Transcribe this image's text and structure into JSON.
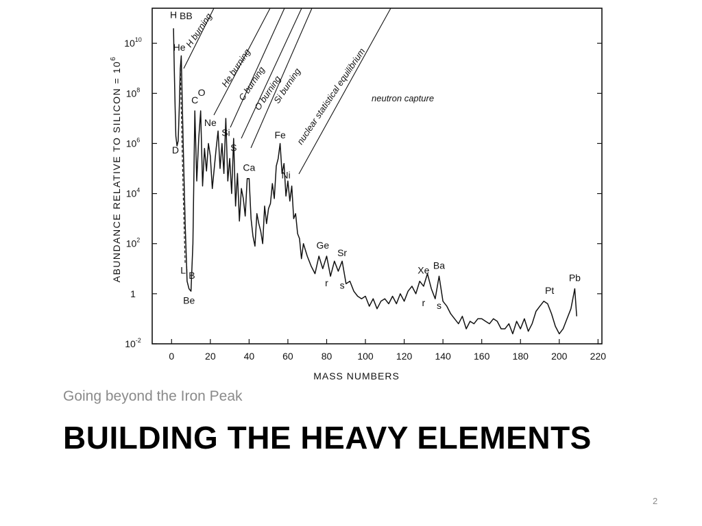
{
  "slide": {
    "subtitle": "Going beyond the Iron Peak",
    "title": "BUILDING THE HEAVY ELEMENTS",
    "page_number": "2"
  },
  "chart_data": {
    "type": "line",
    "xlabel": "MASS NUMBERS",
    "ylabel": "ABUNDANCE RELATIVE TO SILICON = 10",
    "ylabel_exponent": "6",
    "y_scale": "log",
    "xlim": [
      -10,
      222
    ],
    "ylim_log10": [
      -2,
      11.4
    ],
    "x_ticks": [
      0,
      20,
      40,
      60,
      80,
      100,
      120,
      140,
      160,
      180,
      200,
      220
    ],
    "y_ticks": [
      {
        "value": -2,
        "base": "10",
        "exp": "-2"
      },
      {
        "value": 0,
        "base": "1",
        "exp": ""
      },
      {
        "value": 2,
        "base": "10",
        "exp": "2"
      },
      {
        "value": 4,
        "base": "10",
        "exp": "4"
      },
      {
        "value": 6,
        "base": "10",
        "exp": "6"
      },
      {
        "value": 8,
        "base": "10",
        "exp": "8"
      },
      {
        "value": 10,
        "base": "10",
        "exp": "10"
      }
    ],
    "series": [
      {
        "x": [
          1,
          1.4,
          1.8,
          2.2,
          2.8,
          3.4,
          4,
          4.5,
          5,
          6,
          7,
          8,
          9,
          10,
          11,
          12,
          13,
          14,
          15,
          16,
          17,
          18,
          19,
          20,
          21,
          22,
          23,
          24,
          25,
          26,
          27,
          28,
          29,
          30,
          31,
          32,
          33,
          34,
          35,
          36,
          37,
          38,
          39,
          40,
          41,
          42,
          43,
          44,
          45,
          46,
          47,
          48,
          49,
          50,
          51,
          52,
          53,
          54,
          55,
          56,
          57,
          58,
          59,
          60,
          61,
          62,
          63,
          64,
          65,
          66,
          67,
          68,
          70,
          72,
          74,
          76,
          78,
          80,
          82,
          84,
          86,
          88,
          90,
          92,
          94,
          96,
          98,
          100,
          102,
          104,
          106,
          108,
          110,
          112,
          114,
          116,
          118,
          120,
          122,
          124,
          126,
          128,
          130,
          132,
          134,
          136,
          138,
          140,
          142,
          144,
          146,
          148,
          150,
          152,
          154,
          156,
          158,
          160,
          162,
          164,
          166,
          168,
          170,
          172,
          174,
          176,
          178,
          180,
          182,
          184,
          186,
          188,
          190,
          192,
          194,
          196,
          198,
          200,
          202,
          204,
          206,
          208,
          209
        ],
        "log10_y": [
          10.6,
          9.0,
          7.5,
          6.3,
          5.9,
          6.1,
          7.5,
          9.0,
          9.5,
          6.0,
          2.8,
          0.5,
          0.2,
          0.1,
          2.0,
          7.3,
          4.5,
          6.2,
          7.3,
          4.3,
          5.8,
          4.9,
          6.0,
          5.5,
          4.2,
          5.0,
          5.8,
          6.5,
          5.0,
          6.0,
          4.8,
          7.0,
          4.5,
          5.4,
          4.0,
          6.2,
          3.5,
          4.8,
          2.9,
          4.2,
          3.8,
          3.1,
          4.6,
          4.6,
          3.0,
          2.3,
          1.9,
          3.2,
          2.8,
          2.5,
          2.0,
          3.5,
          2.8,
          3.4,
          3.6,
          4.4,
          3.8,
          5.1,
          5.4,
          6.0,
          4.8,
          5.2,
          3.9,
          4.5,
          3.7,
          4.3,
          3.0,
          3.2,
          2.4,
          2.2,
          1.4,
          2.0,
          1.5,
          1.1,
          0.8,
          1.5,
          1.0,
          1.5,
          0.7,
          1.3,
          0.9,
          1.3,
          0.4,
          0.5,
          0.1,
          -0.1,
          -0.2,
          -0.1,
          -0.5,
          -0.2,
          -0.6,
          -0.3,
          -0.2,
          -0.4,
          -0.1,
          -0.4,
          0.0,
          -0.3,
          0.1,
          0.3,
          0.0,
          0.5,
          0.3,
          0.8,
          0.2,
          -0.2,
          0.7,
          -0.3,
          -0.5,
          -0.8,
          -1.0,
          -1.2,
          -0.9,
          -1.4,
          -1.1,
          -1.2,
          -1.0,
          -1.0,
          -1.1,
          -1.2,
          -1.0,
          -1.1,
          -1.4,
          -1.4,
          -1.2,
          -1.6,
          -1.1,
          -1.4,
          -1.0,
          -1.5,
          -1.2,
          -0.7,
          -0.5,
          -0.3,
          -0.4,
          -0.8,
          -1.3,
          -1.6,
          -1.4,
          -1.0,
          -0.6,
          0.2,
          -0.9
        ]
      }
    ],
    "peak_labels": [
      {
        "text": "H",
        "x": 1,
        "log10_y": 11.0
      },
      {
        "text": "He",
        "x": 4,
        "log10_y": 9.7
      },
      {
        "text": "D",
        "x": 2,
        "log10_y": 5.6
      },
      {
        "text": "Li",
        "x": 6.5,
        "log10_y": 0.8
      },
      {
        "text": "B",
        "x": 10.5,
        "log10_y": 0.6
      },
      {
        "text": "Be",
        "x": 9,
        "log10_y": -0.4
      },
      {
        "text": "C",
        "x": 12,
        "log10_y": 7.6
      },
      {
        "text": "O",
        "x": 15.5,
        "log10_y": 7.9
      },
      {
        "text": "Ne",
        "x": 20,
        "log10_y": 6.7
      },
      {
        "text": "Si",
        "x": 28,
        "log10_y": 6.3
      },
      {
        "text": "S",
        "x": 32,
        "log10_y": 5.7
      },
      {
        "text": "Ca",
        "x": 40,
        "log10_y": 4.9
      },
      {
        "text": "Fe",
        "x": 56,
        "log10_y": 6.2
      },
      {
        "text": "Ni",
        "x": 59,
        "log10_y": 4.6
      },
      {
        "text": "Ge",
        "x": 78,
        "log10_y": 1.8
      },
      {
        "text": "Sr",
        "x": 88,
        "log10_y": 1.5
      },
      {
        "text": "r",
        "x": 80,
        "log10_y": 0.3
      },
      {
        "text": "s",
        "x": 88,
        "log10_y": 0.2
      },
      {
        "text": "Xe",
        "x": 130,
        "log10_y": 0.8
      },
      {
        "text": "Ba",
        "x": 138,
        "log10_y": 1.0
      },
      {
        "text": "r",
        "x": 130,
        "log10_y": -0.5
      },
      {
        "text": "s",
        "x": 138,
        "log10_y": -0.6
      },
      {
        "text": "Pt",
        "x": 195,
        "log10_y": 0.0
      },
      {
        "text": "Pb",
        "x": 208,
        "log10_y": 0.5
      }
    ],
    "annotations": [
      {
        "text": "BB"
      },
      {
        "text": "H burning"
      },
      {
        "text": "He burning"
      },
      {
        "text": "C burning"
      },
      {
        "text": "O burning"
      },
      {
        "text": "Si burning"
      },
      {
        "text": "nuclear statistical equilibrium"
      },
      {
        "text": "neutron capture"
      }
    ]
  }
}
